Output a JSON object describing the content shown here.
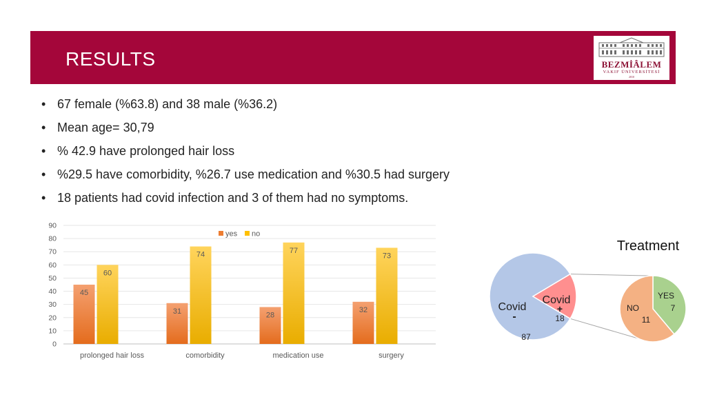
{
  "header": {
    "title": "RESULTS",
    "logo_name": "BEZMİÂLEM",
    "logo_sub": "VAKIF ÜNİVERSİTESİ",
    "logo_year": "2010",
    "band_color": "#a4063a"
  },
  "bullets": [
    "67 female (%63.8) and 38 male (%36.2)",
    "Mean age= 30,79",
    "% 42.9 have prolonged hair loss",
    "%29.5 have comorbidity, %26.7 use medication and %30.5 had surgery",
    "18 patients had covid infection and 3 of them had no symptoms."
  ],
  "chart_data": [
    {
      "type": "bar",
      "categories": [
        "prolonged hair loss",
        "comorbidity",
        "medication use",
        "surgery"
      ],
      "series": [
        {
          "name": "yes",
          "values": [
            45,
            31,
            28,
            32
          ],
          "color": "#ed7d31"
        },
        {
          "name": "no",
          "values": [
            60,
            74,
            77,
            73
          ],
          "color": "#ffc000"
        }
      ],
      "yticks": [
        "0",
        "10",
        "20",
        "30",
        "40",
        "50",
        "60",
        "70",
        "80",
        "90"
      ],
      "ylim": [
        0,
        90
      ],
      "grid": true,
      "legend": "top-center",
      "title": "",
      "xlabel": "",
      "ylabel": ""
    },
    {
      "type": "pie",
      "slices": [
        {
          "label": "Covid -",
          "value": 87,
          "value_label": "87",
          "color": "#b4c7e7"
        },
        {
          "label": "Covid +",
          "value": 18,
          "value_label": "18",
          "color": "#ff8f8f"
        }
      ]
    },
    {
      "type": "pie",
      "title": "Treatment",
      "slices": [
        {
          "label": "YES",
          "value": 7,
          "value_label": "7",
          "color": "#a9d18e"
        },
        {
          "label": "NO",
          "value": 11,
          "value_label": "11",
          "color": "#f4b183"
        }
      ]
    }
  ]
}
